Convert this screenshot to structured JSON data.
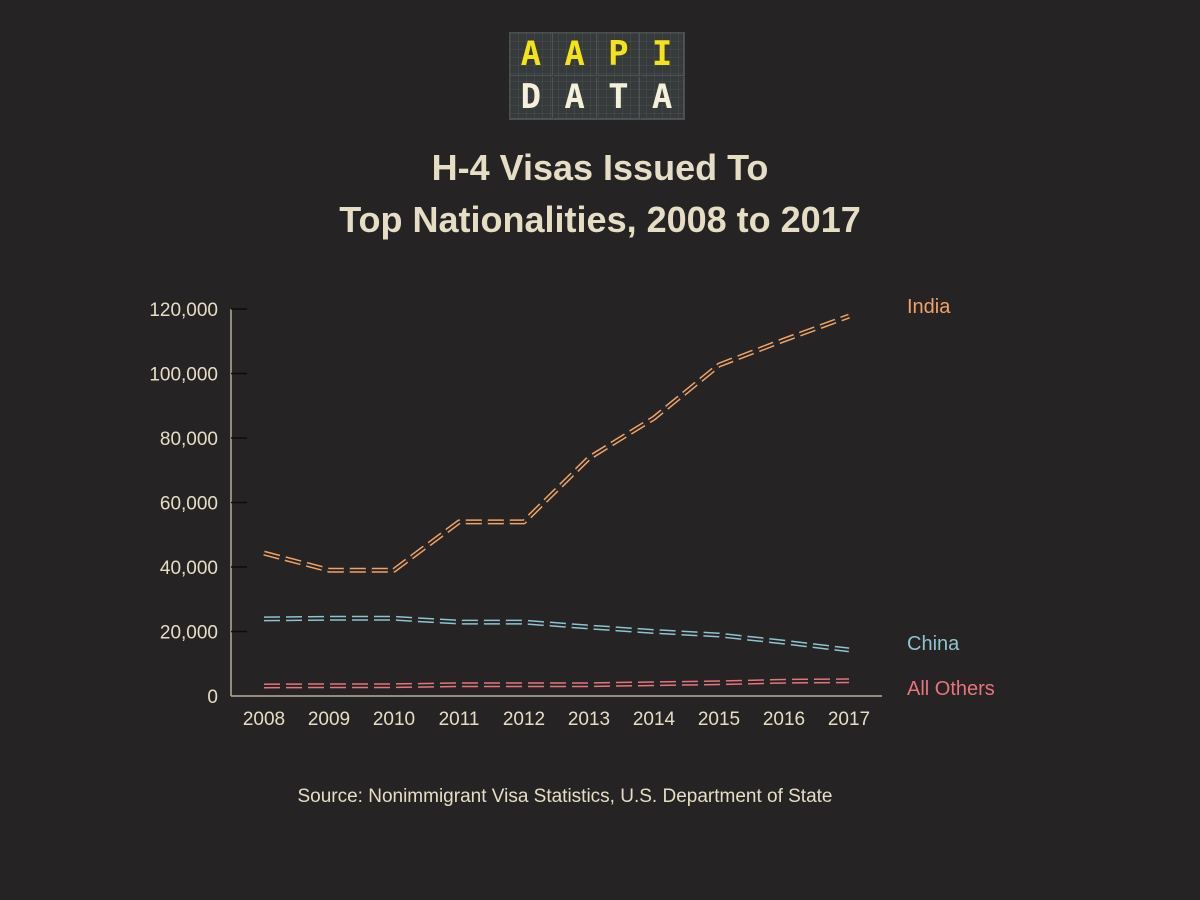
{
  "logo": {
    "top": [
      "A",
      "A",
      "P",
      "I"
    ],
    "bottom": [
      "D",
      "A",
      "T",
      "A"
    ]
  },
  "title": {
    "line1": "H-4 Visas Issued To",
    "line2": "Top Nationalities, 2008 to 2017"
  },
  "source": "Source: Nonimmigrant Visa Statistics, U.S. Department of State",
  "colors": {
    "background": "#252324",
    "text": "#e5ddc4",
    "india": "#f0a268",
    "china": "#8fc3cf",
    "others": "#e5747c"
  },
  "chart_data": {
    "type": "line",
    "title": "H-4 Visas Issued To Top Nationalities, 2008 to 2017",
    "xlabel": "",
    "ylabel": "",
    "x": [
      "2008",
      "2009",
      "2010",
      "2011",
      "2012",
      "2013",
      "2014",
      "2015",
      "2016",
      "2017"
    ],
    "ylim": [
      0,
      120000
    ],
    "yticks": [
      0,
      20000,
      40000,
      60000,
      80000,
      100000,
      120000
    ],
    "ytick_labels": [
      "0",
      "20,000",
      "40,000",
      "60,000",
      "80,000",
      "100,000",
      "120,000"
    ],
    "grid": false,
    "legend": "direct labels at right end of each line",
    "series": [
      {
        "name": "India",
        "color": "#f0a268",
        "values": [
          44300,
          39000,
          39000,
          54000,
          54000,
          73800,
          86200,
          102600,
          110400,
          117800
        ]
      },
      {
        "name": "China",
        "color": "#8fc3cf",
        "values": [
          23900,
          24100,
          24100,
          22900,
          22900,
          21400,
          20000,
          18900,
          16700,
          14300
        ]
      },
      {
        "name": "All Others",
        "color": "#e5747c",
        "values": [
          3100,
          3200,
          3200,
          3500,
          3500,
          3500,
          3800,
          4100,
          4600,
          4700
        ]
      }
    ]
  }
}
